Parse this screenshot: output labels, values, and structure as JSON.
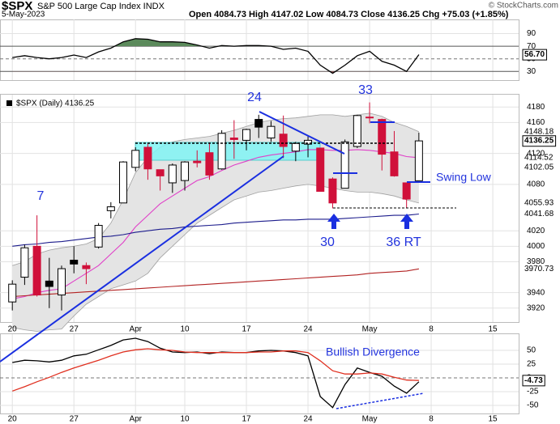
{
  "header": {
    "symbol": "$SPX",
    "name": "S&P 500 Large Cap Index INDX",
    "date": "5-May-2023",
    "quote": "Open 4084.73  High 4147.02  Low 4084.73  Close 4136.25  Chg +75.03 (+1.85%)",
    "source": "© StockCharts.com"
  },
  "chart_data": [
    {
      "type": "line",
      "series": [
        {
          "color": "#000000",
          "values": [
            52,
            55,
            52,
            50,
            52,
            56,
            52,
            61,
            67,
            77,
            82,
            81,
            77,
            77,
            76,
            72,
            67,
            71,
            70,
            71,
            71,
            70,
            65,
            67,
            62,
            40,
            27,
            40,
            55,
            62,
            46,
            40,
            30,
            56.7
          ],
          "value_labels": [
            null,
            null,
            null,
            null,
            null,
            null,
            null,
            null,
            null,
            null,
            null,
            null,
            null,
            null,
            null,
            null,
            null,
            null,
            null,
            null,
            null,
            null,
            null,
            null,
            null,
            null,
            null,
            null,
            null,
            null,
            null,
            null,
            null,
            "56.70"
          ]
        }
      ],
      "ylim": [
        16.25,
        112.5
      ],
      "yticks": [
        90,
        70,
        50,
        30
      ],
      "fill_above": 70,
      "fill_above_color": "#5b8a5b",
      "fill_below": 30,
      "fill_below_color": "#a85a5a"
    },
    {
      "type": "candlestick",
      "legend": "$SPX (Daily) 4136.25",
      "up_color": "#000000",
      "down_color": "#d0103a",
      "open": [
        3928,
        3960,
        4000,
        3955,
        3937,
        3982,
        3975,
        3999,
        4046,
        4056,
        4102,
        4128,
        4099,
        4082,
        4085,
        4110,
        4121,
        4100,
        4140,
        4137,
        4164,
        4140,
        4145,
        4123,
        4132,
        4127,
        4087,
        4075,
        4129,
        4166,
        4164,
        4122,
        4082,
        4084.73
      ],
      "high": [
        3956,
        4002,
        4040,
        3985,
        3975,
        4000,
        3979,
        4030,
        4057,
        4110,
        4128,
        4133,
        4099,
        4107,
        4110,
        4124,
        4134,
        4150,
        4163,
        4152,
        4170,
        4162,
        4169,
        4135,
        4142,
        4127,
        4089,
        4138,
        4170,
        4186,
        4165,
        4149,
        4082,
        4147.02
      ],
      "low": [
        3917,
        3950,
        3935,
        3920,
        3917,
        3965,
        3951,
        3997,
        4036,
        4056,
        4097,
        4086,
        4072,
        4069,
        4072,
        4102,
        4086,
        4099,
        4113,
        4124,
        4140,
        4135,
        4114,
        4110,
        4115,
        4071,
        4049,
        4075,
        4127,
        4159,
        4098,
        4090,
        4049,
        4084.73
      ],
      "close": [
        3951,
        3998,
        3937,
        3948,
        3971,
        3977,
        3971,
        4027,
        4051,
        4109,
        4124,
        4100,
        4091,
        4105,
        4109,
        4108,
        4092,
        4146,
        4138,
        4151,
        4154,
        4155,
        4129,
        4133,
        4137,
        4071,
        4056,
        4135,
        4169,
        4167,
        4119,
        4091,
        4061,
        4136.25
      ],
      "band": {
        "color": "#e4e4e4",
        "edge": "#a0a0a0",
        "upper": [
          3975,
          3980,
          3990,
          3995,
          3998,
          4000,
          4003,
          4010,
          4030,
          4060,
          4095,
          4115,
          4128,
          4135,
          4138,
          4140,
          4142,
          4146,
          4150,
          4155,
          4160,
          4163,
          4165,
          4166,
          4168,
          4170,
          4170,
          4168,
          4170,
          4172,
          4168,
          4160,
          4155,
          4148.18
        ],
        "lower": [
          3895,
          3892,
          3890,
          3892,
          3893,
          3910,
          3925,
          3935,
          3945,
          3950,
          3955,
          3965,
          3985,
          4000,
          4015,
          4030,
          4040,
          4050,
          4060,
          4065,
          4070,
          4072,
          4075,
          4078,
          4080,
          4078,
          4075,
          4072,
          4070,
          4070,
          4068,
          4065,
          4060,
          4055.93
        ]
      },
      "series": [
        {
          "color": "#e040c8",
          "values": [
            3932,
            3935,
            3940,
            3943,
            3945,
            3955,
            3965,
            3975,
            3990,
            4005,
            4025,
            4040,
            4055,
            4065,
            4075,
            4085,
            4090,
            4098,
            4105,
            4110,
            4115,
            4118,
            4120,
            4122,
            4125,
            4125,
            4124,
            4124,
            4125,
            4124,
            4122,
            4120,
            4116,
            4114.52
          ]
        },
        {
          "color": "#1c1c8c",
          "values": [
            4000,
            4002,
            4003,
            4005,
            4006,
            4008,
            4010,
            4012,
            4013,
            4015,
            4018,
            4020,
            4022,
            4023,
            4025,
            4026,
            4027,
            4028,
            4030,
            4031,
            4032,
            4033,
            4034,
            4034,
            4035,
            4035,
            4035,
            4036,
            4037,
            4038,
            4039,
            4040,
            4040,
            4041.68
          ]
        },
        {
          "color": "#b22222",
          "values": [
            3935,
            3936,
            3937,
            3938,
            3939,
            3940,
            3941,
            3942,
            3943,
            3944,
            3945,
            3946,
            3947,
            3948,
            3949,
            3950,
            3951,
            3952,
            3953,
            3954,
            3955,
            3956,
            3957,
            3958,
            3959,
            3960,
            3961,
            3962,
            3963,
            3965,
            3966,
            3967,
            3968,
            3970.73
          ]
        }
      ],
      "price_levels": [
        4102.05
      ],
      "ylim": [
        3902,
        4196
      ],
      "yticks": [
        3920,
        3940,
        3980,
        4000,
        4020,
        4080,
        4120,
        4160,
        4180
      ],
      "xlim": [
        -1,
        41.1
      ],
      "xticks": [
        {
          "value": 0,
          "label": "20"
        },
        {
          "value": 5,
          "label": "27"
        },
        {
          "value": 10,
          "label": "Apr"
        },
        {
          "value": 14,
          "label": "10"
        },
        {
          "value": 19,
          "label": "17"
        },
        {
          "value": 24,
          "label": "24"
        },
        {
          "value": 29,
          "label": "May"
        },
        {
          "value": 34,
          "label": "8"
        },
        {
          "value": 39,
          "label": "15"
        }
      ],
      "annotations": [
        "7",
        "24",
        "33",
        "30",
        "36 RT",
        "Swing Low"
      ]
    },
    {
      "type": "line",
      "series": [
        {
          "color": "#000000",
          "values": [
            28,
            32,
            31,
            29,
            32,
            40,
            43,
            51,
            59,
            69,
            72,
            66,
            54,
            47,
            46,
            47,
            44,
            47,
            46,
            46,
            49,
            50,
            49,
            46,
            40,
            -34,
            -54,
            -12,
            18,
            10,
            3,
            -15,
            -28,
            -7
          ]
        },
        {
          "color": "#e03020",
          "values": [
            -24,
            -16,
            -7,
            1,
            10,
            18,
            25,
            32,
            40,
            47,
            51,
            53,
            51,
            50,
            47,
            46,
            46,
            46,
            46,
            46,
            47,
            47,
            49,
            49,
            46,
            31,
            13,
            7,
            7,
            9,
            7,
            1,
            -4,
            -4.73
          ]
        }
      ],
      "ylim": [
        -64.7,
        79.4
      ],
      "yticks": [
        50,
        25,
        0,
        -25,
        -50
      ],
      "annotation": "Bullish Divergence"
    }
  ]
}
